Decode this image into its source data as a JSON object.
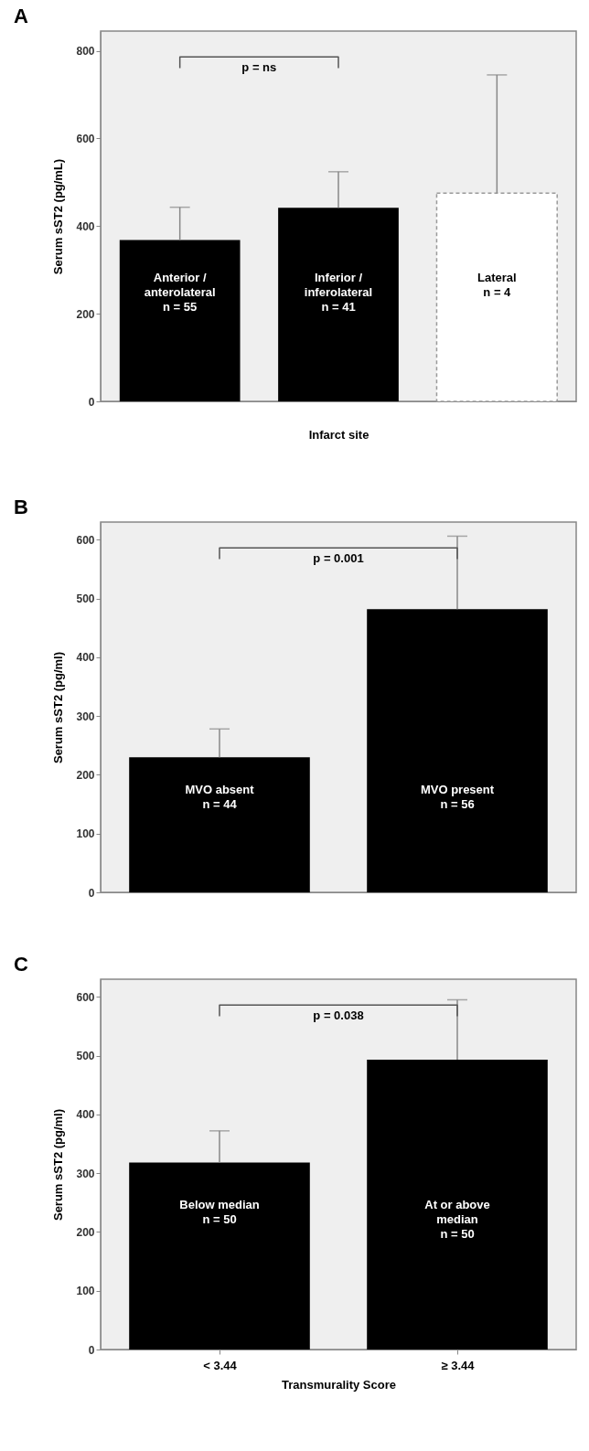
{
  "chart_data": [
    {
      "type": "bar",
      "title": "A",
      "ylabel": "Serum sST2 (pg/mL)",
      "xlabel": "Infarct site",
      "categories": [
        "Anterior / anterolateral",
        "Inferior / inferolateral",
        "Lateral"
      ],
      "values": [
        368,
        442,
        475
      ],
      "colors": [
        "#000000",
        "#000000",
        "#ffffff"
      ],
      "errors": [
        [
          368,
          443
        ],
        [
          442,
          524
        ],
        [
          475,
          745
        ]
      ],
      "ylim": [
        0,
        845
      ],
      "yticks": [
        0,
        200,
        400,
        600,
        800
      ],
      "tick_labels": "y",
      "annotations": [
        "p = ns",
        "n = 55",
        "n = 41",
        "n = 4"
      ]
    },
    {
      "type": "bar",
      "title": "B",
      "ylabel": "Serum sST2 (pg/ml)",
      "categories": [
        "MVO absent",
        "MVO present"
      ],
      "values": [
        230,
        482
      ],
      "colors": [
        "#000000",
        "#000000"
      ],
      "errors": [
        [
          230,
          278
        ],
        [
          482,
          606
        ]
      ],
      "ylim": [
        0,
        630
      ],
      "yticks": [
        0,
        100,
        200,
        300,
        400,
        500,
        600
      ],
      "tick_labels": "y",
      "annotations": [
        "p = 0.001",
        "n = 44",
        "n = 56"
      ]
    },
    {
      "type": "bar",
      "title": "C",
      "ylabel": "Serum sST2 (pg/ml)",
      "xlabel": "Transmurality Score",
      "categories": [
        "< 3.44",
        "≥ 3.44"
      ],
      "values": [
        318,
        493
      ],
      "colors": [
        "#000000",
        "#000000"
      ],
      "errors": [
        [
          318,
          372
        ],
        [
          493,
          595
        ]
      ],
      "ylim": [
        0,
        630
      ],
      "yticks": [
        0,
        100,
        200,
        300,
        400,
        500,
        600
      ],
      "annotations": [
        "p = 0.038",
        "Below median",
        "At or above median",
        "n = 50",
        "n = 50"
      ]
    }
  ]
}
